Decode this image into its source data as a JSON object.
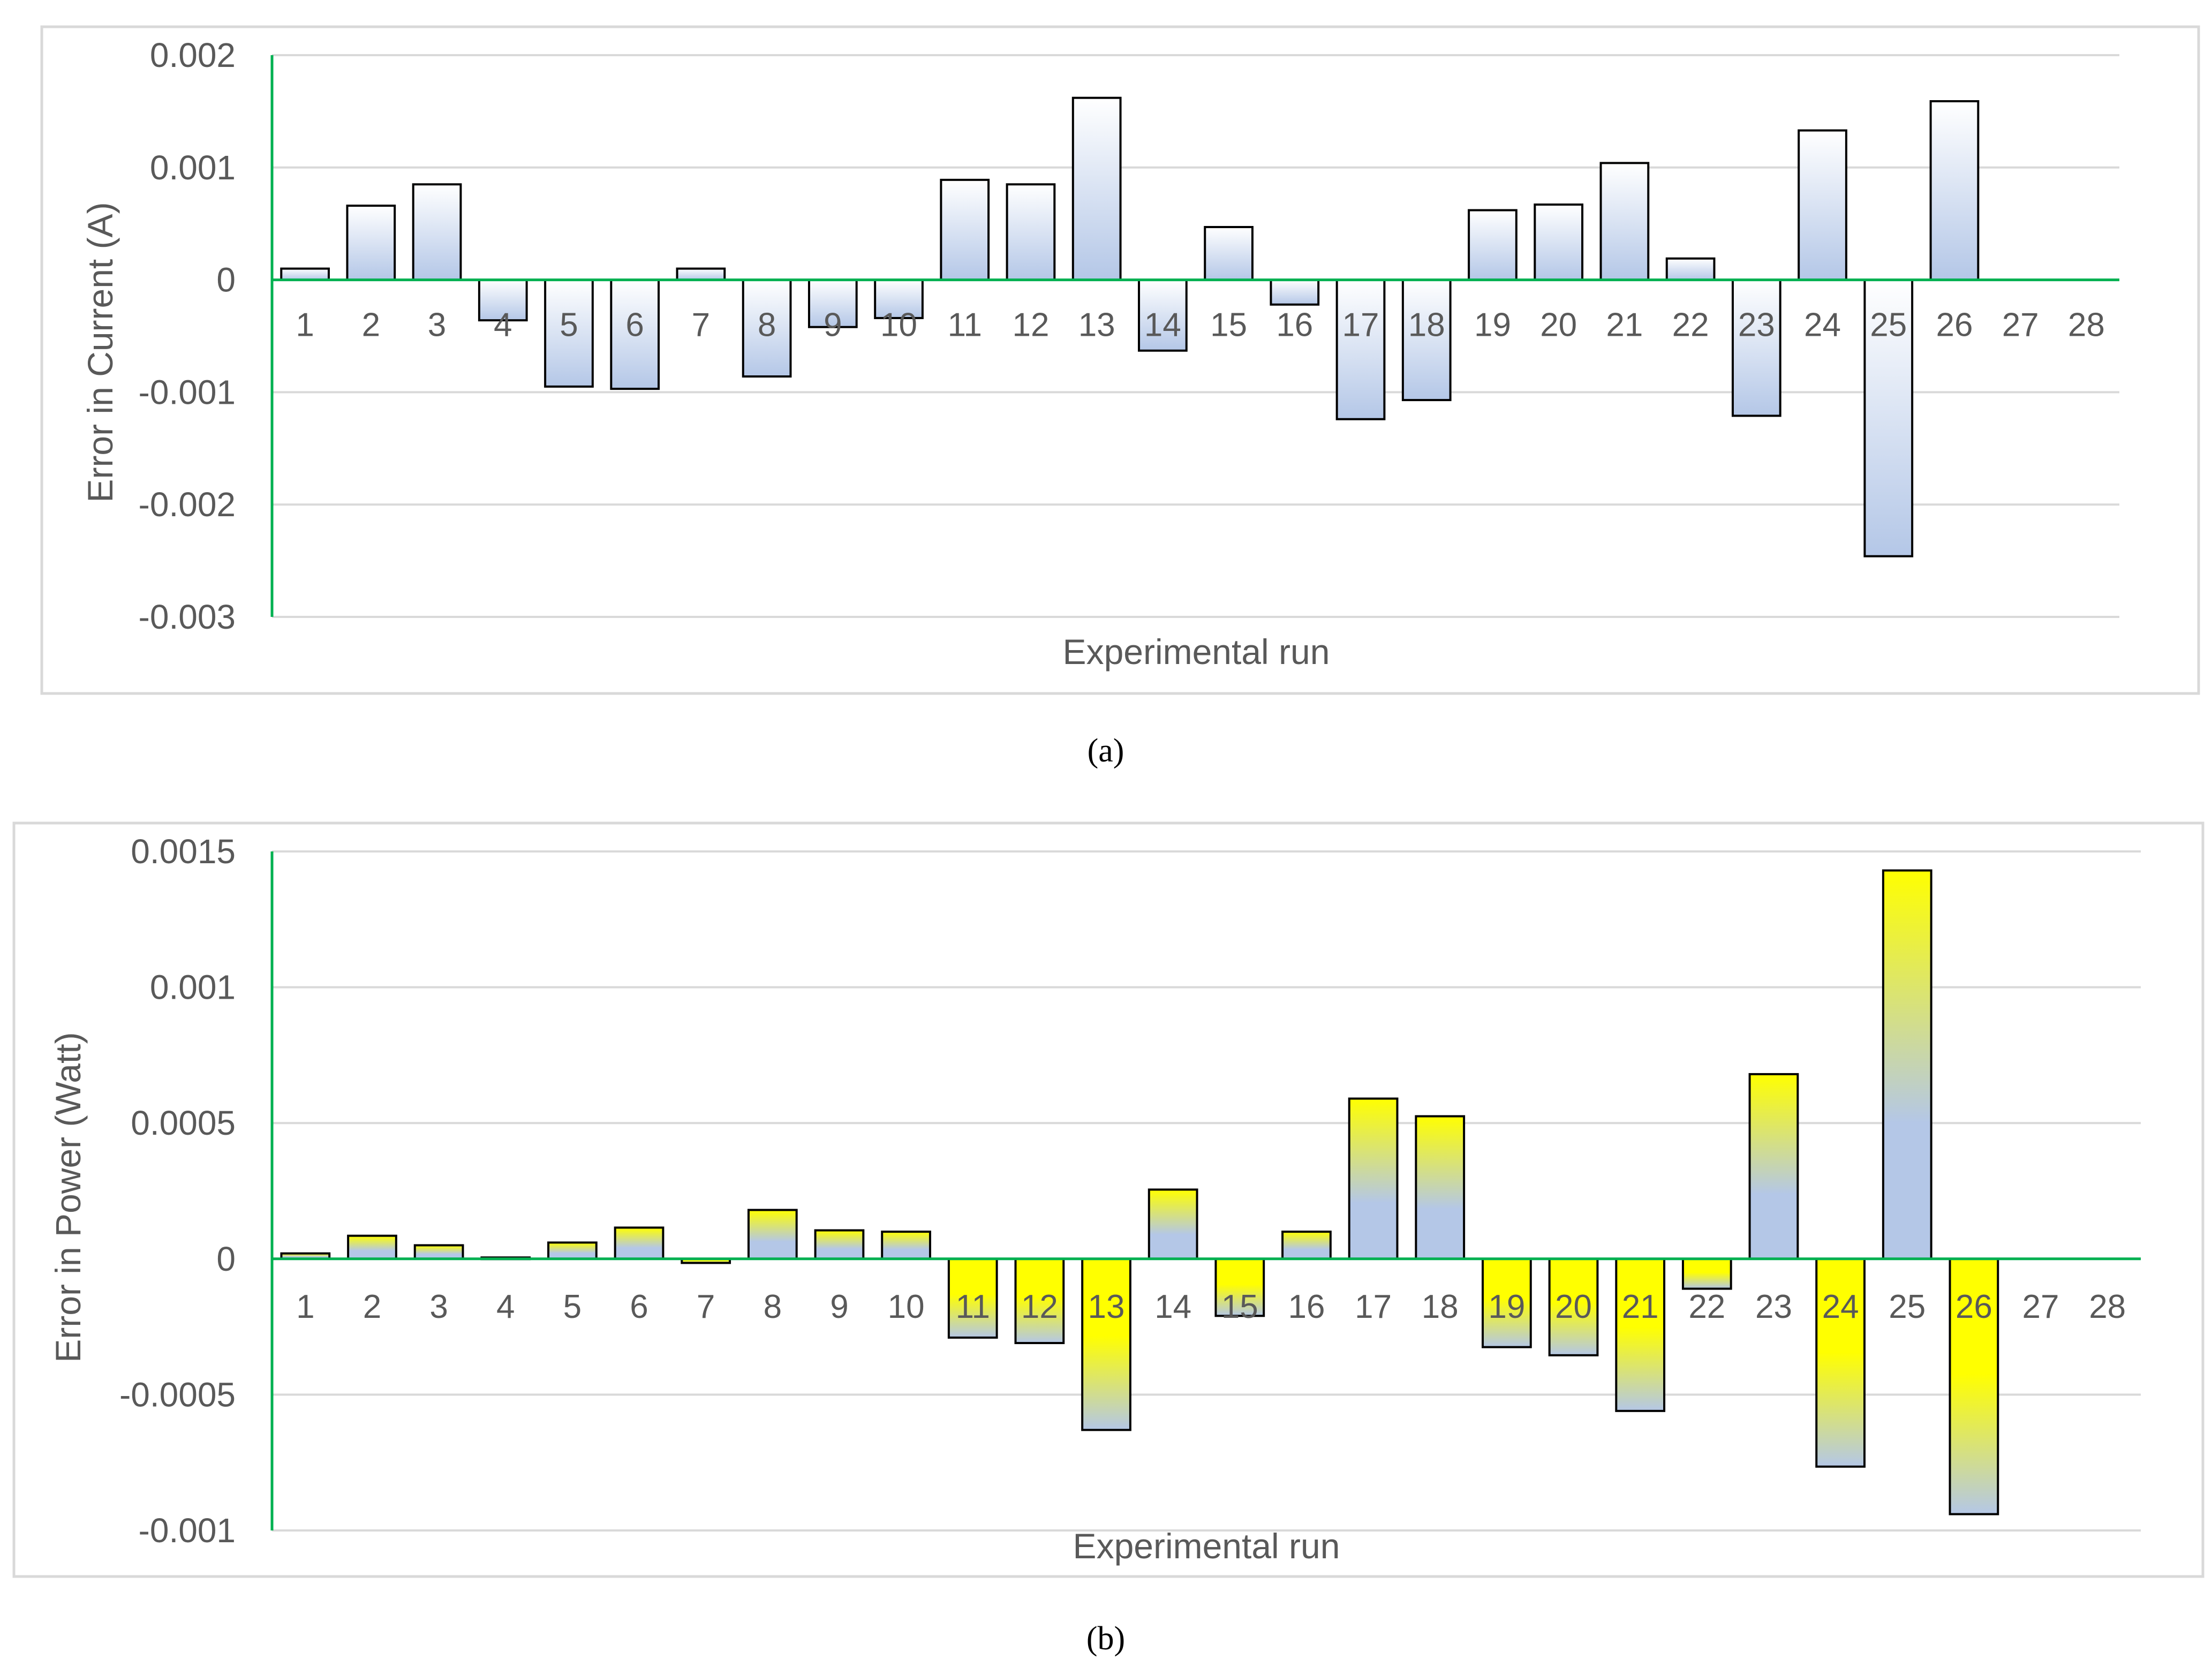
{
  "chart_data": [
    {
      "type": "bar",
      "panel_label": "(a)",
      "title": "",
      "xlabel": "Experimental run",
      "ylabel": "Error in Current (A)",
      "ylim": [
        -0.003,
        0.002
      ],
      "yticks": [
        0.002,
        0.001,
        0,
        -0.001,
        -0.002,
        -0.003
      ],
      "ytick_labels": [
        "0.002",
        "0.001",
        "0",
        "-0.001",
        "-0.002",
        "-0.003"
      ],
      "grid": true,
      "legend": "none",
      "categories": [
        "1",
        "2",
        "3",
        "4",
        "5",
        "6",
        "7",
        "8",
        "9",
        "10",
        "11",
        "12",
        "13",
        "14",
        "15",
        "16",
        "17",
        "18",
        "19",
        "20",
        "21",
        "22",
        "23",
        "24",
        "25",
        "26",
        "27",
        "28"
      ],
      "values": [
        0.0001,
        0.00066,
        0.00085,
        -0.00036,
        -0.00095,
        -0.00097,
        0.0001,
        -0.00086,
        -0.00042,
        -0.00034,
        0.00089,
        0.00085,
        0.00162,
        -0.00063,
        0.00047,
        -0.00022,
        -0.00124,
        -0.00107,
        0.00062,
        0.00067,
        0.00104,
        0.00019,
        -0.00121,
        0.00133,
        -0.00246,
        0.00159,
        0,
        0
      ],
      "colors": {
        "gradient_top": "#ffffff",
        "gradient_mid": "#b4c7e7",
        "zero_axis": "#00b050",
        "grid": "#d9d9d9",
        "bar_stroke": "#000000"
      }
    },
    {
      "type": "bar",
      "panel_label": "(b)",
      "title": "",
      "xlabel": "Experimental run",
      "ylabel": "Error in Power (Watt)",
      "ylim": [
        -0.001,
        0.0015
      ],
      "yticks": [
        0.0015,
        0.001,
        0.0005,
        0,
        -0.0005,
        -0.001
      ],
      "ytick_labels": [
        "0.0015",
        "0.001",
        "0.0005",
        "0",
        "-0.0005",
        "-0.001"
      ],
      "grid": true,
      "legend": "none",
      "categories": [
        "1",
        "2",
        "3",
        "4",
        "5",
        "6",
        "7",
        "8",
        "9",
        "10",
        "11",
        "12",
        "13",
        "14",
        "15",
        "16",
        "17",
        "18",
        "19",
        "20",
        "21",
        "22",
        "23",
        "24",
        "25",
        "26",
        "27",
        "28"
      ],
      "values": [
        2e-05,
        8.5e-05,
        5e-05,
        5e-06,
        6e-05,
        0.000115,
        -1.5e-05,
        0.00018,
        0.000105,
        0.0001,
        -0.00029,
        -0.00031,
        -0.00063,
        0.000255,
        -0.00021,
        0.0001,
        0.00059,
        0.000525,
        -0.000325,
        -0.000355,
        -0.00056,
        -0.00011,
        0.00068,
        -0.000765,
        0.00143,
        -0.00094,
        0,
        0
      ],
      "colors": {
        "gradient_yellow": "#ffff00",
        "gradient_blue": "#b4c7e7",
        "zero_axis": "#00b050",
        "grid": "#d9d9d9",
        "bar_stroke": "#000000"
      }
    }
  ]
}
